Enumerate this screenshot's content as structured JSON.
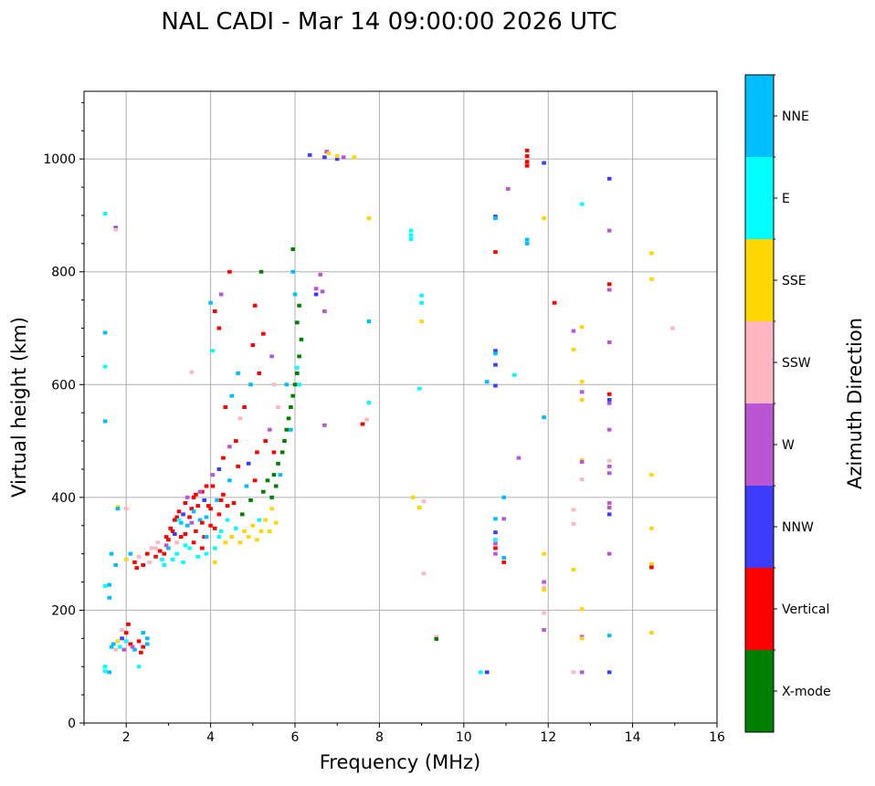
{
  "chart_data": {
    "type": "scatter",
    "title": "NAL CADI - Mar 14 09:00:00 2026 UTC",
    "xlabel": "Frequency (MHz)",
    "ylabel": "Virtual height (km)",
    "xlim": [
      1,
      16
    ],
    "ylim": [
      0,
      1120
    ],
    "xticks": [
      2,
      4,
      6,
      8,
      10,
      12,
      14,
      16
    ],
    "yticks": [
      0,
      200,
      400,
      600,
      800,
      1000
    ],
    "grid": true,
    "colorbar": {
      "label": "Azimuth Direction",
      "categories": [
        {
          "name": "X-mode",
          "color": "#008000"
        },
        {
          "name": "Vertical",
          "color": "#ff0000"
        },
        {
          "name": "NNW",
          "color": "#3c3cff"
        },
        {
          "name": "W",
          "color": "#ba55d3"
        },
        {
          "name": "SSW",
          "color": "#ffb6c1"
        },
        {
          "name": "SSE",
          "color": "#ffd700"
        },
        {
          "name": "E",
          "color": "#00ffff"
        },
        {
          "name": "NNE",
          "color": "#00bfff"
        }
      ]
    },
    "point_format": [
      "frequency_mhz",
      "height_km",
      "category_index"
    ],
    "points": [
      [
        6.35,
        1007,
        2
      ],
      [
        6.7,
        1003,
        2
      ],
      [
        6.75,
        1013,
        3
      ],
      [
        6.8,
        1010,
        5
      ],
      [
        7.0,
        1000,
        2
      ],
      [
        7.0,
        1005,
        5
      ],
      [
        7.15,
        1003,
        3
      ],
      [
        7.4,
        1003,
        5
      ],
      [
        7.75,
        895,
        5
      ],
      [
        7.75,
        712,
        7
      ],
      [
        7.75,
        568,
        6
      ],
      [
        7.7,
        538,
        4
      ],
      [
        7.6,
        530,
        1
      ],
      [
        8.75,
        873,
        6
      ],
      [
        8.75,
        865,
        6
      ],
      [
        8.75,
        858,
        6
      ],
      [
        9.0,
        758,
        6
      ],
      [
        9.0,
        745,
        6
      ],
      [
        9.0,
        712,
        5
      ],
      [
        8.95,
        593,
        6
      ],
      [
        8.8,
        400,
        5
      ],
      [
        8.95,
        382,
        5
      ],
      [
        9.05,
        393,
        4
      ],
      [
        9.05,
        265,
        4
      ],
      [
        9.35,
        153,
        4
      ],
      [
        9.35,
        149,
        0
      ],
      [
        10.75,
        898,
        2
      ],
      [
        10.75,
        895,
        7
      ],
      [
        10.75,
        835,
        1
      ],
      [
        10.75,
        660,
        2
      ],
      [
        10.75,
        655,
        7
      ],
      [
        10.75,
        635,
        2
      ],
      [
        10.55,
        605,
        7
      ],
      [
        10.75,
        598,
        2
      ],
      [
        11.2,
        617,
        6
      ],
      [
        10.95,
        400,
        7
      ],
      [
        10.75,
        362,
        7
      ],
      [
        10.95,
        362,
        3
      ],
      [
        10.75,
        338,
        2
      ],
      [
        10.75,
        325,
        6
      ],
      [
        10.75,
        318,
        3
      ],
      [
        10.75,
        310,
        1
      ],
      [
        10.75,
        300,
        3
      ],
      [
        10.95,
        293,
        7
      ],
      [
        10.95,
        285,
        1
      ],
      [
        10.4,
        90,
        6
      ],
      [
        10.55,
        90,
        2
      ],
      [
        11.05,
        947,
        3
      ],
      [
        11.3,
        470,
        3
      ],
      [
        11.5,
        1015,
        1
      ],
      [
        11.5,
        1005,
        1
      ],
      [
        11.5,
        995,
        1
      ],
      [
        11.5,
        988,
        1
      ],
      [
        11.9,
        993,
        2
      ],
      [
        11.9,
        895,
        5
      ],
      [
        11.5,
        857,
        7
      ],
      [
        11.5,
        850,
        7
      ],
      [
        12.15,
        745,
        1
      ],
      [
        11.9,
        542,
        7
      ],
      [
        11.9,
        300,
        5
      ],
      [
        11.9,
        250,
        3
      ],
      [
        11.9,
        240,
        4
      ],
      [
        11.9,
        236,
        5
      ],
      [
        11.9,
        195,
        4
      ],
      [
        11.9,
        165,
        3
      ],
      [
        12.8,
        920,
        6
      ],
      [
        12.6,
        695,
        3
      ],
      [
        12.8,
        702,
        5
      ],
      [
        12.6,
        662,
        5
      ],
      [
        12.8,
        605,
        5
      ],
      [
        12.8,
        587,
        3
      ],
      [
        12.8,
        573,
        5
      ],
      [
        12.8,
        466,
        5
      ],
      [
        12.8,
        463,
        3
      ],
      [
        12.8,
        432,
        4
      ],
      [
        12.6,
        378,
        4
      ],
      [
        12.6,
        353,
        4
      ],
      [
        12.6,
        272,
        5
      ],
      [
        12.8,
        202,
        5
      ],
      [
        12.8,
        153,
        3
      ],
      [
        12.8,
        150,
        5
      ],
      [
        12.6,
        90,
        4
      ],
      [
        12.8,
        90,
        3
      ],
      [
        13.45,
        965,
        2
      ],
      [
        13.45,
        873,
        3
      ],
      [
        13.45,
        778,
        1
      ],
      [
        13.45,
        768,
        3
      ],
      [
        13.45,
        675,
        3
      ],
      [
        13.45,
        583,
        1
      ],
      [
        13.45,
        573,
        2
      ],
      [
        13.45,
        567,
        3
      ],
      [
        13.45,
        520,
        3
      ],
      [
        13.45,
        465,
        4
      ],
      [
        13.45,
        455,
        3
      ],
      [
        13.45,
        443,
        3
      ],
      [
        13.45,
        390,
        3
      ],
      [
        13.45,
        382,
        3
      ],
      [
        13.45,
        370,
        2
      ],
      [
        13.45,
        300,
        3
      ],
      [
        13.45,
        155,
        7
      ],
      [
        13.45,
        90,
        2
      ],
      [
        14.45,
        833,
        5
      ],
      [
        14.45,
        787,
        5
      ],
      [
        14.45,
        440,
        5
      ],
      [
        14.45,
        345,
        5
      ],
      [
        14.45,
        282,
        5
      ],
      [
        14.45,
        276,
        1
      ],
      [
        14.45,
        160,
        5
      ],
      [
        14.95,
        700,
        4
      ],
      [
        1.5,
        903,
        6
      ],
      [
        1.75,
        878,
        2
      ],
      [
        1.75,
        875,
        4
      ],
      [
        1.5,
        692,
        7
      ],
      [
        1.5,
        632,
        6
      ],
      [
        1.5,
        535,
        7
      ],
      [
        1.5,
        243,
        6
      ],
      [
        1.6,
        245,
        7
      ],
      [
        1.5,
        100,
        6
      ],
      [
        1.5,
        92,
        6
      ],
      [
        1.6,
        90,
        7
      ],
      [
        1.8,
        383,
        5
      ],
      [
        1.8,
        380,
        7
      ],
      [
        2.0,
        380,
        4
      ],
      [
        1.65,
        300,
        7
      ],
      [
        1.75,
        280,
        7
      ],
      [
        1.6,
        222,
        7
      ],
      [
        1.7,
        140,
        7
      ],
      [
        1.8,
        145,
        5
      ],
      [
        1.9,
        150,
        2
      ],
      [
        2.0,
        160,
        1
      ],
      [
        2.05,
        175,
        1
      ],
      [
        1.85,
        135,
        6
      ],
      [
        1.95,
        130,
        3
      ],
      [
        2.1,
        140,
        1
      ],
      [
        2.2,
        130,
        7
      ],
      [
        2.3,
        145,
        1
      ],
      [
        2.4,
        135,
        1
      ],
      [
        2.5,
        150,
        7
      ],
      [
        2.5,
        140,
        7
      ],
      [
        2.4,
        160,
        7
      ],
      [
        1.75,
        130,
        4
      ],
      [
        1.65,
        135,
        7
      ],
      [
        2.35,
        125,
        1
      ],
      [
        2.3,
        100,
        6
      ],
      [
        1.9,
        165,
        4
      ],
      [
        2.0,
        145,
        6
      ],
      [
        2.15,
        135,
        3
      ],
      [
        2.0,
        290,
        5
      ],
      [
        2.1,
        300,
        7
      ],
      [
        2.2,
        285,
        1
      ],
      [
        2.25,
        275,
        1
      ],
      [
        2.3,
        295,
        4
      ],
      [
        2.4,
        280,
        1
      ],
      [
        2.5,
        300,
        1
      ],
      [
        2.55,
        285,
        4
      ],
      [
        2.6,
        310,
        4
      ],
      [
        2.7,
        295,
        1
      ],
      [
        2.75,
        320,
        4
      ],
      [
        2.8,
        305,
        1
      ],
      [
        2.85,
        290,
        6
      ],
      [
        2.9,
        280,
        6
      ],
      [
        2.95,
        330,
        1
      ],
      [
        3.0,
        310,
        7
      ],
      [
        3.05,
        345,
        1
      ],
      [
        3.1,
        290,
        6
      ],
      [
        3.15,
        360,
        1
      ],
      [
        3.2,
        300,
        6
      ],
      [
        3.25,
        375,
        1
      ],
      [
        3.3,
        330,
        1
      ],
      [
        3.35,
        285,
        6
      ],
      [
        3.4,
        390,
        1
      ],
      [
        3.45,
        350,
        7
      ],
      [
        3.5,
        310,
        6
      ],
      [
        3.55,
        380,
        1
      ],
      [
        3.6,
        400,
        1
      ],
      [
        3.65,
        340,
        1
      ],
      [
        3.7,
        295,
        6
      ],
      [
        3.75,
        360,
        7
      ],
      [
        3.8,
        410,
        1
      ],
      [
        3.85,
        330,
        1
      ],
      [
        3.9,
        300,
        6
      ],
      [
        3.95,
        385,
        1
      ],
      [
        4.0,
        350,
        1
      ],
      [
        4.05,
        420,
        1
      ],
      [
        4.1,
        310,
        6
      ],
      [
        4.15,
        395,
        7
      ],
      [
        4.2,
        370,
        1
      ],
      [
        4.25,
        340,
        6
      ],
      [
        4.3,
        405,
        1
      ],
      [
        4.35,
        320,
        5
      ],
      [
        4.4,
        360,
        6
      ],
      [
        4.45,
        430,
        7
      ],
      [
        4.5,
        330,
        5
      ],
      [
        4.55,
        390,
        1
      ],
      [
        4.6,
        345,
        6
      ],
      [
        4.65,
        455,
        1
      ],
      [
        4.7,
        320,
        5
      ],
      [
        4.75,
        370,
        0
      ],
      [
        4.8,
        340,
        5
      ],
      [
        4.85,
        420,
        7
      ],
      [
        4.9,
        330,
        5
      ],
      [
        4.95,
        395,
        0
      ],
      [
        5.0,
        350,
        5
      ],
      [
        5.05,
        430,
        1
      ],
      [
        5.1,
        325,
        5
      ],
      [
        5.15,
        360,
        6
      ],
      [
        5.2,
        340,
        5
      ],
      [
        5.25,
        410,
        0
      ],
      [
        5.3,
        360,
        5
      ],
      [
        5.35,
        430,
        0
      ],
      [
        5.4,
        340,
        5
      ],
      [
        5.45,
        380,
        5
      ],
      [
        5.5,
        440,
        0
      ],
      [
        5.55,
        355,
        5
      ],
      [
        5.6,
        460,
        0
      ],
      [
        5.7,
        480,
        0
      ],
      [
        5.75,
        500,
        0
      ],
      [
        5.8,
        520,
        0
      ],
      [
        5.85,
        540,
        0
      ],
      [
        5.9,
        560,
        0
      ],
      [
        5.95,
        580,
        0
      ],
      [
        6.0,
        600,
        0
      ],
      [
        6.05,
        620,
        0
      ],
      [
        6.1,
        650,
        0
      ],
      [
        6.15,
        680,
        0
      ],
      [
        6.05,
        710,
        0
      ],
      [
        6.1,
        740,
        0
      ],
      [
        5.9,
        520,
        7
      ],
      [
        5.8,
        600,
        7
      ],
      [
        6.0,
        760,
        7
      ],
      [
        5.95,
        800,
        7
      ],
      [
        5.95,
        840,
        0
      ],
      [
        5.2,
        800,
        0
      ],
      [
        5.05,
        740,
        1
      ],
      [
        5.25,
        690,
        1
      ],
      [
        5.0,
        670,
        1
      ],
      [
        5.15,
        620,
        1
      ],
      [
        4.95,
        600,
        7
      ],
      [
        4.8,
        560,
        1
      ],
      [
        4.7,
        540,
        4
      ],
      [
        4.6,
        500,
        1
      ],
      [
        4.45,
        490,
        3
      ],
      [
        4.3,
        470,
        1
      ],
      [
        4.2,
        450,
        2
      ],
      [
        4.05,
        440,
        3
      ],
      [
        3.9,
        420,
        1
      ],
      [
        3.75,
        410,
        3
      ],
      [
        4.1,
        730,
        1
      ],
      [
        4.0,
        745,
        7
      ],
      [
        4.25,
        760,
        3
      ],
      [
        4.45,
        800,
        1
      ],
      [
        4.2,
        700,
        1
      ],
      [
        4.05,
        660,
        6
      ],
      [
        4.5,
        580,
        7
      ],
      [
        4.65,
        620,
        7
      ],
      [
        4.35,
        560,
        1
      ],
      [
        5.45,
        650,
        3
      ],
      [
        5.5,
        600,
        4
      ],
      [
        5.6,
        560,
        4
      ],
      [
        5.4,
        520,
        3
      ],
      [
        5.3,
        500,
        1
      ],
      [
        5.1,
        480,
        1
      ],
      [
        4.9,
        460,
        2
      ],
      [
        5.5,
        480,
        1
      ],
      [
        5.65,
        440,
        7
      ],
      [
        5.55,
        420,
        0
      ],
      [
        5.45,
        400,
        0
      ],
      [
        3.0,
        325,
        1
      ],
      [
        3.1,
        340,
        1
      ],
      [
        3.2,
        365,
        1
      ],
      [
        3.3,
        355,
        7
      ],
      [
        3.4,
        335,
        1
      ],
      [
        3.5,
        365,
        1
      ],
      [
        3.6,
        375,
        7
      ],
      [
        3.7,
        385,
        1
      ],
      [
        3.8,
        355,
        1
      ],
      [
        3.9,
        365,
        7
      ],
      [
        4.0,
        380,
        1
      ],
      [
        4.1,
        345,
        1
      ],
      [
        3.2,
        320,
        4
      ],
      [
        3.4,
        315,
        6
      ],
      [
        3.6,
        320,
        1
      ],
      [
        3.8,
        310,
        1
      ],
      [
        3.9,
        330,
        7
      ],
      [
        4.2,
        330,
        6
      ],
      [
        2.9,
        300,
        1
      ],
      [
        2.7,
        310,
        4
      ],
      [
        3.35,
        370,
        2
      ],
      [
        3.55,
        355,
        3
      ],
      [
        3.85,
        395,
        2
      ],
      [
        3.15,
        335,
        2
      ],
      [
        2.95,
        315,
        3
      ],
      [
        4.4,
        385,
        1
      ],
      [
        4.25,
        395,
        1
      ],
      [
        3.65,
        405,
        1
      ],
      [
        3.45,
        400,
        3
      ],
      [
        3.25,
        360,
        6
      ],
      [
        6.1,
        600,
        6
      ],
      [
        6.05,
        630,
        6
      ],
      [
        6.6,
        795,
        3
      ],
      [
        6.65,
        765,
        3
      ],
      [
        6.5,
        770,
        3
      ],
      [
        6.5,
        760,
        2
      ],
      [
        6.7,
        730,
        3
      ],
      [
        6.7,
        528,
        3
      ],
      [
        3.55,
        622,
        4
      ],
      [
        4.1,
        285,
        5
      ]
    ]
  }
}
